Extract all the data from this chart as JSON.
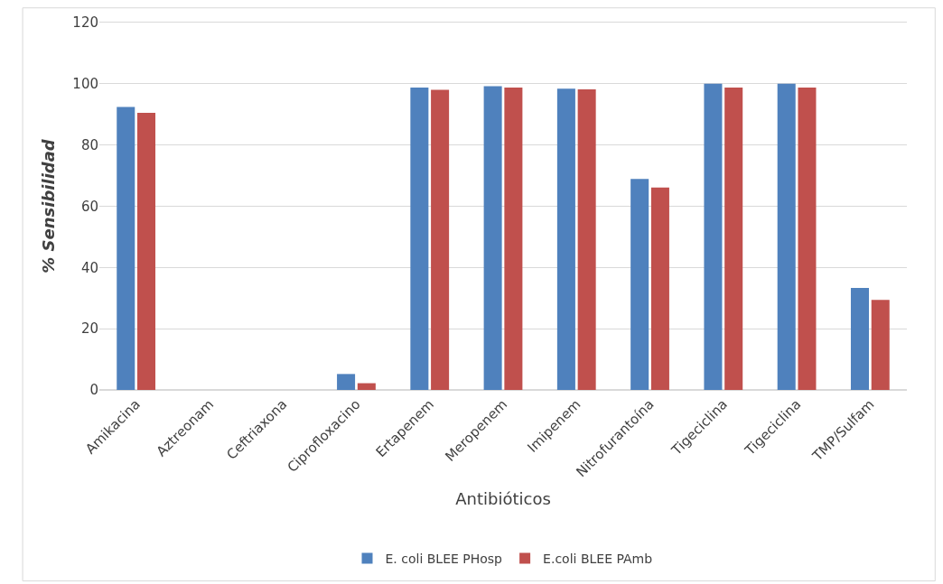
{
  "chart_data": {
    "type": "bar",
    "xlabel": "Antibióticos",
    "ylabel": "% Sensibilidad",
    "categories": [
      "Amikacina",
      "Aztreonam",
      "Ceftriaxona",
      "Ciprofloxacino",
      "Ertapenem",
      "Meropenem",
      "Imipenem",
      "Nitrofurantoína",
      "Tigeciclina",
      "Tigeciclina",
      "TMP/Sulfam"
    ],
    "series": [
      {
        "name": "E. coli BLEE PHosp",
        "color": "#4f81bd",
        "values": [
          92.4,
          0,
          0,
          5.2,
          98.8,
          99.2,
          98.4,
          68.9,
          100,
          100,
          33.3
        ]
      },
      {
        "name": "E.coli BLEE PAmb",
        "color": "#c0504d",
        "values": [
          90.5,
          0,
          0,
          2.2,
          98.0,
          98.8,
          98.2,
          66.1,
          98.8,
          98.8,
          29.4
        ]
      }
    ],
    "ylim": [
      0,
      120
    ],
    "yticks": [
      0,
      20,
      40,
      60,
      80,
      100,
      120
    ],
    "grid": "y",
    "legend": "bottom"
  }
}
